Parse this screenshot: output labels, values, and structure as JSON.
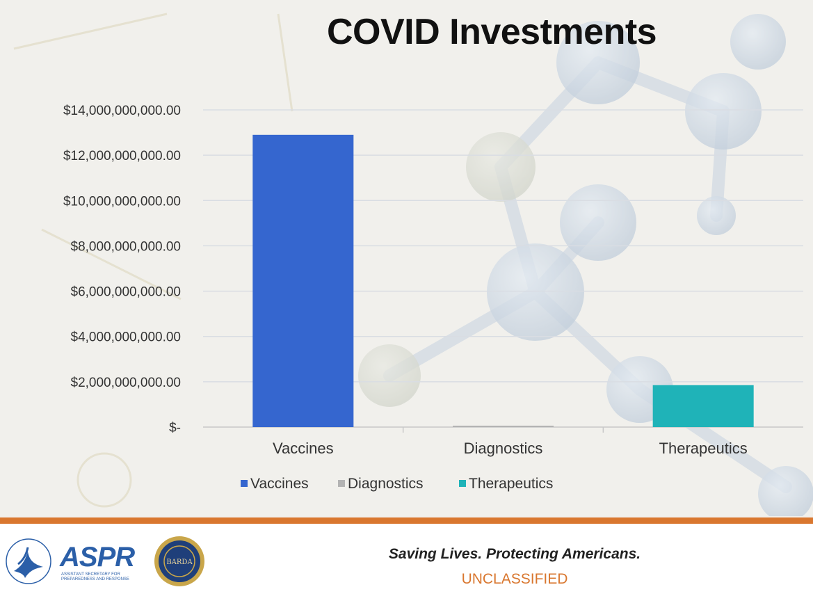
{
  "chart_data": {
    "type": "bar",
    "title": "COVID Investments",
    "xlabel": "",
    "ylabel": "",
    "categories": [
      "Vaccines",
      "Diagnostics",
      "Therapeutics"
    ],
    "values": [
      12900000000,
      60000000,
      1850000000
    ],
    "colors": [
      "#3566cf",
      "#b3b3b3",
      "#1fb3b8"
    ],
    "ylim": [
      0,
      14000000000
    ],
    "yticks": [
      {
        "value": 0,
        "label": "$-"
      },
      {
        "value": 2000000000,
        "label": "$2,000,000,000.00"
      },
      {
        "value": 4000000000,
        "label": "$4,000,000,000.00"
      },
      {
        "value": 6000000000,
        "label": "$6,000,000,000.00"
      },
      {
        "value": 8000000000,
        "label": "$8,000,000,000.00"
      },
      {
        "value": 10000000000,
        "label": "$10,000,000,000.00"
      },
      {
        "value": 12000000000,
        "label": "$12,000,000,000.00"
      },
      {
        "value": 14000000000,
        "label": "$14,000,000,000.00"
      }
    ],
    "grid": true,
    "legend_position": "bottom",
    "legend": [
      "Vaccines",
      "Diagnostics",
      "Therapeutics"
    ]
  },
  "footer": {
    "logo_text": "ASPR",
    "logo_subtext": "Assistant Secretary for Preparedness and Response",
    "seal_text": "BARDA",
    "tagline": "Saving Lives. Protecting Americans.",
    "classification": "UNCLASSIFIED"
  },
  "colors": {
    "accent_orange": "#d9772f",
    "aspr_blue": "#2b5fa8"
  },
  "icons": {
    "hhs": "hhs-eagle-logo",
    "barda": "barda-seal"
  }
}
